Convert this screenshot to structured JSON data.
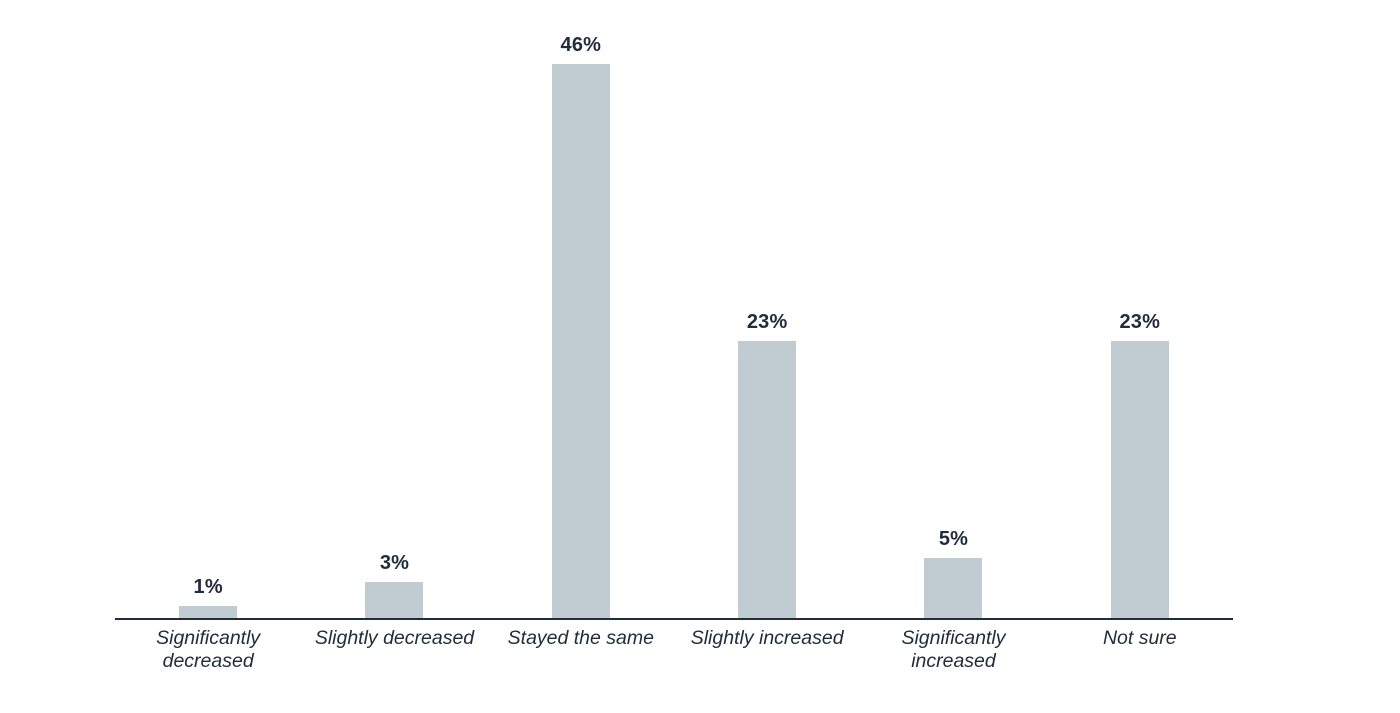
{
  "chart_data": {
    "type": "bar",
    "categories": [
      "Significantly decreased",
      "Slightly decreased",
      "Stayed the same",
      "Slightly increased",
      "Significantly increased",
      "Not sure"
    ],
    "values": [
      1,
      3,
      46,
      23,
      5,
      23
    ],
    "value_labels": [
      "1%",
      "3%",
      "46%",
      "23%",
      "5%",
      "23%"
    ],
    "title": "",
    "xlabel": "",
    "ylabel": "",
    "ylim": [
      0,
      50
    ],
    "grid": false,
    "legend": false,
    "bar_color": "#c1cbd2",
    "text_color": "#212d3b",
    "axis_color": "#212d3b",
    "background_color": "#ffffff"
  }
}
